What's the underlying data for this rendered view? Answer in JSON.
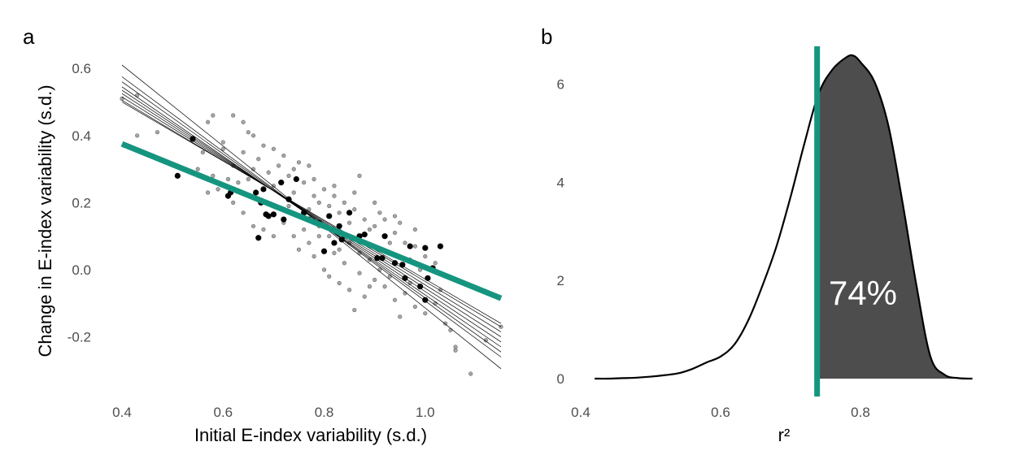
{
  "colors": {
    "accent": "#15957f",
    "fill": "#4d4d4d",
    "points": "#888888",
    "highlight": "#000000"
  },
  "chart_data": [
    {
      "panel": "a",
      "type": "scatter",
      "xlabel": "Initial E-index variability (s.d.)",
      "ylabel": "Change in E-index variability (s.d.)",
      "xlim": [
        0.37,
        1.16
      ],
      "ylim": [
        -0.33,
        0.64
      ],
      "xticks": [
        "0.4",
        "0.6",
        "0.8",
        "1.0"
      ],
      "yticks": [
        "-0.2",
        "0.0",
        "0.2",
        "0.4",
        "0.6"
      ],
      "grid": false,
      "main_fit": {
        "x": [
          0.4,
          1.15
        ],
        "y": [
          0.375,
          -0.085
        ]
      },
      "fit_lines": [
        {
          "x": [
            0.4,
            1.15
          ],
          "y": [
            0.61,
            -0.295
          ]
        },
        {
          "x": [
            0.4,
            1.15
          ],
          "y": [
            0.575,
            -0.26
          ]
        },
        {
          "x": [
            0.4,
            1.15
          ],
          "y": [
            0.56,
            -0.245
          ]
        },
        {
          "x": [
            0.4,
            1.15
          ],
          "y": [
            0.545,
            -0.23
          ]
        },
        {
          "x": [
            0.4,
            1.15
          ],
          "y": [
            0.535,
            -0.215
          ]
        },
        {
          "x": [
            0.4,
            1.15
          ],
          "y": [
            0.525,
            -0.2
          ]
        },
        {
          "x": [
            0.4,
            1.15
          ],
          "y": [
            0.515,
            -0.185
          ]
        },
        {
          "x": [
            0.4,
            1.15
          ],
          "y": [
            0.505,
            -0.17
          ]
        },
        {
          "x": [
            0.4,
            1.15
          ],
          "y": [
            0.5,
            -0.16
          ]
        }
      ],
      "highlighted_points": [
        {
          "x": 0.51,
          "y": 0.28
        },
        {
          "x": 0.54,
          "y": 0.39
        },
        {
          "x": 0.61,
          "y": 0.22
        },
        {
          "x": 0.615,
          "y": 0.23
        },
        {
          "x": 0.665,
          "y": 0.23
        },
        {
          "x": 0.67,
          "y": 0.095
        },
        {
          "x": 0.675,
          "y": 0.2
        },
        {
          "x": 0.68,
          "y": 0.24
        },
        {
          "x": 0.685,
          "y": 0.165
        },
        {
          "x": 0.69,
          "y": 0.16
        },
        {
          "x": 0.7,
          "y": 0.165
        },
        {
          "x": 0.715,
          "y": 0.26
        },
        {
          "x": 0.72,
          "y": 0.15
        },
        {
          "x": 0.73,
          "y": 0.21
        },
        {
          "x": 0.745,
          "y": 0.27
        },
        {
          "x": 0.76,
          "y": 0.17
        },
        {
          "x": 0.77,
          "y": 0.15
        },
        {
          "x": 0.79,
          "y": 0.14
        },
        {
          "x": 0.8,
          "y": 0.055
        },
        {
          "x": 0.81,
          "y": 0.16
        },
        {
          "x": 0.82,
          "y": 0.08
        },
        {
          "x": 0.83,
          "y": 0.13
        },
        {
          "x": 0.835,
          "y": 0.09
        },
        {
          "x": 0.85,
          "y": 0.17
        },
        {
          "x": 0.87,
          "y": 0.1
        },
        {
          "x": 0.88,
          "y": 0.105
        },
        {
          "x": 0.905,
          "y": 0.035
        },
        {
          "x": 0.915,
          "y": 0.035
        },
        {
          "x": 0.92,
          "y": 0.1
        },
        {
          "x": 0.94,
          "y": 0.02
        },
        {
          "x": 0.955,
          "y": 0.015
        },
        {
          "x": 0.96,
          "y": -0.025
        },
        {
          "x": 0.97,
          "y": 0.07
        },
        {
          "x": 0.99,
          "y": -0.05
        },
        {
          "x": 1.0,
          "y": 0.065
        },
        {
          "x": 1.0,
          "y": -0.09
        },
        {
          "x": 1.005,
          "y": -0.025
        },
        {
          "x": 1.015,
          "y": 0.005
        },
        {
          "x": 1.03,
          "y": 0.07
        }
      ],
      "background_points": [
        {
          "x": 0.4,
          "y": 0.51
        },
        {
          "x": 0.43,
          "y": 0.52
        },
        {
          "x": 0.43,
          "y": 0.4
        },
        {
          "x": 0.47,
          "y": 0.41
        },
        {
          "x": 0.57,
          "y": 0.44
        },
        {
          "x": 0.58,
          "y": 0.46
        },
        {
          "x": 0.62,
          "y": 0.46
        },
        {
          "x": 0.64,
          "y": 0.44
        },
        {
          "x": 0.66,
          "y": 0.4
        },
        {
          "x": 0.68,
          "y": 0.37
        },
        {
          "x": 0.72,
          "y": 0.34
        },
        {
          "x": 0.75,
          "y": 0.32
        },
        {
          "x": 0.6,
          "y": 0.36
        },
        {
          "x": 0.62,
          "y": 0.31
        },
        {
          "x": 0.64,
          "y": 0.35
        },
        {
          "x": 0.66,
          "y": 0.3
        },
        {
          "x": 0.63,
          "y": 0.26
        },
        {
          "x": 0.65,
          "y": 0.27
        },
        {
          "x": 0.67,
          "y": 0.33
        },
        {
          "x": 0.69,
          "y": 0.29
        },
        {
          "x": 0.7,
          "y": 0.25
        },
        {
          "x": 0.71,
          "y": 0.31
        },
        {
          "x": 0.73,
          "y": 0.28
        },
        {
          "x": 0.74,
          "y": 0.23
        },
        {
          "x": 0.76,
          "y": 0.26
        },
        {
          "x": 0.77,
          "y": 0.31
        },
        {
          "x": 0.78,
          "y": 0.22
        },
        {
          "x": 0.79,
          "y": 0.2
        },
        {
          "x": 0.8,
          "y": 0.24
        },
        {
          "x": 0.81,
          "y": 0.19
        },
        {
          "x": 0.82,
          "y": 0.22
        },
        {
          "x": 0.83,
          "y": 0.17
        },
        {
          "x": 0.84,
          "y": 0.2
        },
        {
          "x": 0.85,
          "y": 0.14
        },
        {
          "x": 0.86,
          "y": 0.18
        },
        {
          "x": 0.87,
          "y": 0.28
        },
        {
          "x": 0.88,
          "y": 0.15
        },
        {
          "x": 0.89,
          "y": 0.12
        },
        {
          "x": 0.9,
          "y": 0.13
        },
        {
          "x": 0.91,
          "y": 0.17
        },
        {
          "x": 0.92,
          "y": 0.15
        },
        {
          "x": 0.93,
          "y": 0.08
        },
        {
          "x": 0.94,
          "y": 0.11
        },
        {
          "x": 0.95,
          "y": 0.14
        },
        {
          "x": 0.96,
          "y": 0.08
        },
        {
          "x": 0.97,
          "y": 0.03
        },
        {
          "x": 0.98,
          "y": 0.07
        },
        {
          "x": 0.99,
          "y": 0.0
        },
        {
          "x": 1.0,
          "y": 0.04
        },
        {
          "x": 0.62,
          "y": 0.2
        },
        {
          "x": 0.64,
          "y": 0.17
        },
        {
          "x": 0.66,
          "y": 0.13
        },
        {
          "x": 0.68,
          "y": 0.12
        },
        {
          "x": 0.7,
          "y": 0.1
        },
        {
          "x": 0.72,
          "y": 0.14
        },
        {
          "x": 0.74,
          "y": 0.1
        },
        {
          "x": 0.75,
          "y": 0.06
        },
        {
          "x": 0.76,
          "y": 0.12
        },
        {
          "x": 0.77,
          "y": 0.08
        },
        {
          "x": 0.78,
          "y": 0.04
        },
        {
          "x": 0.79,
          "y": 0.1
        },
        {
          "x": 0.8,
          "y": 0.0
        },
        {
          "x": 0.81,
          "y": -0.02
        },
        {
          "x": 0.82,
          "y": 0.05
        },
        {
          "x": 0.83,
          "y": -0.04
        },
        {
          "x": 0.84,
          "y": 0.02
        },
        {
          "x": 0.85,
          "y": -0.06
        },
        {
          "x": 0.86,
          "y": -0.12
        },
        {
          "x": 0.87,
          "y": -0.01
        },
        {
          "x": 0.88,
          "y": -0.08
        },
        {
          "x": 0.89,
          "y": 0.03
        },
        {
          "x": 0.9,
          "y": -0.03
        },
        {
          "x": 0.92,
          "y": -0.05
        },
        {
          "x": 0.94,
          "y": -0.09
        },
        {
          "x": 0.95,
          "y": -0.14
        },
        {
          "x": 0.96,
          "y": -0.07
        },
        {
          "x": 0.98,
          "y": -0.11
        },
        {
          "x": 1.0,
          "y": -0.13
        },
        {
          "x": 1.02,
          "y": -0.1
        },
        {
          "x": 1.04,
          "y": -0.16
        },
        {
          "x": 1.05,
          "y": -0.18
        },
        {
          "x": 1.06,
          "y": -0.23
        },
        {
          "x": 1.06,
          "y": -0.24
        },
        {
          "x": 1.09,
          "y": -0.31
        },
        {
          "x": 1.15,
          "y": -0.17
        },
        {
          "x": 1.12,
          "y": -0.21
        },
        {
          "x": 0.56,
          "y": 0.35
        },
        {
          "x": 0.58,
          "y": 0.28
        },
        {
          "x": 0.59,
          "y": 0.24
        },
        {
          "x": 0.61,
          "y": 0.27
        },
        {
          "x": 0.55,
          "y": 0.3
        },
        {
          "x": 0.57,
          "y": 0.23
        },
        {
          "x": 0.73,
          "y": 0.19
        },
        {
          "x": 0.75,
          "y": 0.16
        },
        {
          "x": 0.77,
          "y": 0.18
        },
        {
          "x": 0.79,
          "y": 0.13
        },
        {
          "x": 0.81,
          "y": 0.1
        },
        {
          "x": 0.83,
          "y": 0.06
        },
        {
          "x": 0.85,
          "y": 0.08
        },
        {
          "x": 0.87,
          "y": 0.05
        },
        {
          "x": 0.89,
          "y": -0.05
        },
        {
          "x": 0.91,
          "y": 0.0
        },
        {
          "x": 0.93,
          "y": -0.02
        },
        {
          "x": 0.97,
          "y": -0.04
        },
        {
          "x": 0.6,
          "y": 0.38
        },
        {
          "x": 0.65,
          "y": 0.41
        },
        {
          "x": 0.7,
          "y": 0.36
        },
        {
          "x": 0.74,
          "y": 0.3
        },
        {
          "x": 0.78,
          "y": 0.27
        },
        {
          "x": 0.82,
          "y": 0.25
        },
        {
          "x": 0.86,
          "y": 0.23
        },
        {
          "x": 0.9,
          "y": 0.2
        },
        {
          "x": 0.94,
          "y": 0.16
        },
        {
          "x": 0.98,
          "y": 0.12
        },
        {
          "x": 1.02,
          "y": 0.02
        },
        {
          "x": 1.03,
          "y": -0.06
        }
      ]
    },
    {
      "panel": "b",
      "type": "area",
      "xlabel": "r²",
      "ylabel": "",
      "xlim": [
        0.4,
        0.97
      ],
      "ylim": [
        0,
        6.8
      ],
      "xticks": [
        "0.4",
        "0.6",
        "0.8"
      ],
      "yticks": [
        "0",
        "2",
        "4",
        "6"
      ],
      "grid": false,
      "density": {
        "x": [
          0.42,
          0.44,
          0.46,
          0.48,
          0.5,
          0.52,
          0.54,
          0.56,
          0.58,
          0.6,
          0.62,
          0.64,
          0.66,
          0.68,
          0.7,
          0.72,
          0.74,
          0.76,
          0.78,
          0.79,
          0.8,
          0.82,
          0.84,
          0.86,
          0.88,
          0.9,
          0.92,
          0.94,
          0.96
        ],
        "y": [
          0.0,
          0.0,
          0.01,
          0.02,
          0.04,
          0.07,
          0.11,
          0.2,
          0.33,
          0.45,
          0.7,
          1.2,
          1.9,
          2.7,
          3.7,
          4.8,
          5.8,
          6.3,
          6.55,
          6.58,
          6.45,
          6.05,
          5.15,
          3.6,
          1.9,
          0.45,
          0.08,
          0.01,
          0.0
        ]
      },
      "threshold": 0.738,
      "annotation": "74%"
    }
  ]
}
